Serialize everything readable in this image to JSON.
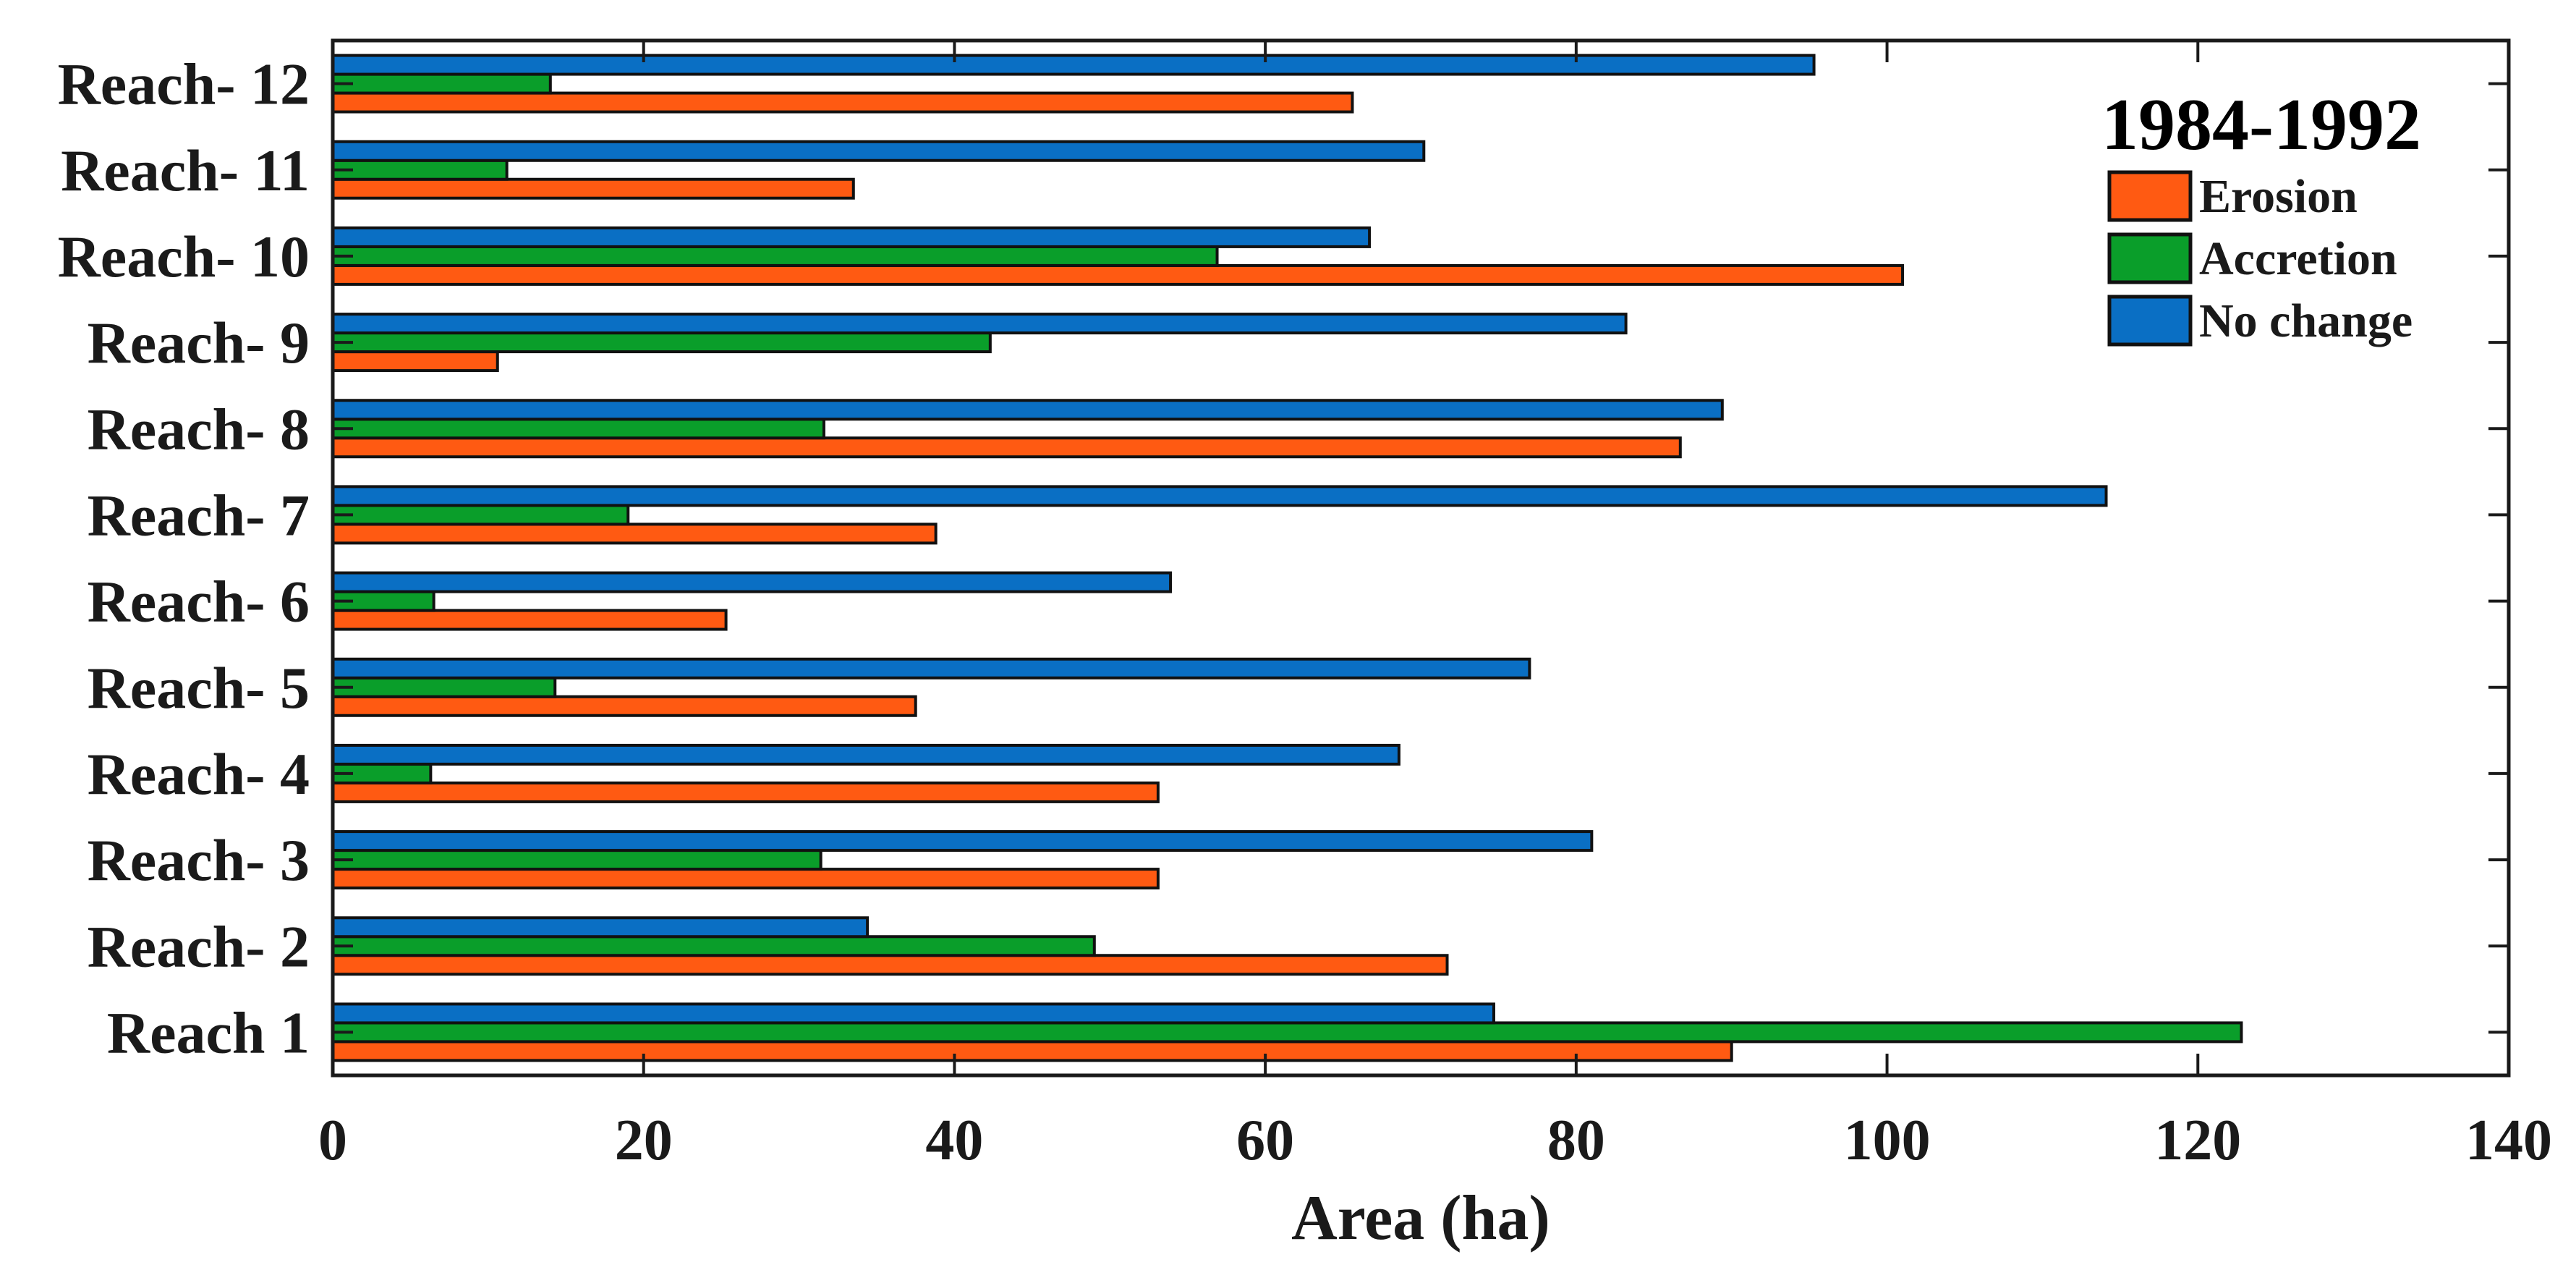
{
  "chart_data": {
    "type": "bar",
    "orientation": "horizontal",
    "title": "",
    "xlabel": "Area (ha)",
    "ylabel": "",
    "xlim": [
      0,
      140
    ],
    "xticks": [
      0,
      20,
      40,
      60,
      80,
      100,
      120,
      140
    ],
    "grid": false,
    "legend_title": "1984-1992",
    "legend_position": "top-right",
    "categories": [
      "Reach 1",
      "Reach- 2",
      "Reach- 3",
      "Reach- 4",
      "Reach- 5",
      "Reach- 6",
      "Reach- 7",
      "Reach- 8",
      "Reach- 9",
      "Reach- 10",
      "Reach- 11",
      "Reach- 12"
    ],
    "series": [
      {
        "name": "Erosion",
        "color": "#ff5a12",
        "values": [
          90,
          71.7,
          53.1,
          53.1,
          37.5,
          25.3,
          38.8,
          86.7,
          10.6,
          101,
          33.5,
          65.6
        ]
      },
      {
        "name": "Accretion",
        "color": "#0a9e2a",
        "values": [
          122.8,
          49,
          31.4,
          6.3,
          14.3,
          6.5,
          19,
          31.6,
          42.3,
          56.9,
          11.2,
          14
        ]
      },
      {
        "name": "No change",
        "color": "#0a6fc4",
        "values": [
          74.7,
          34.4,
          81,
          68.6,
          77,
          53.9,
          114.1,
          89.4,
          83.2,
          66.7,
          70.2,
          95.3
        ]
      }
    ]
  }
}
